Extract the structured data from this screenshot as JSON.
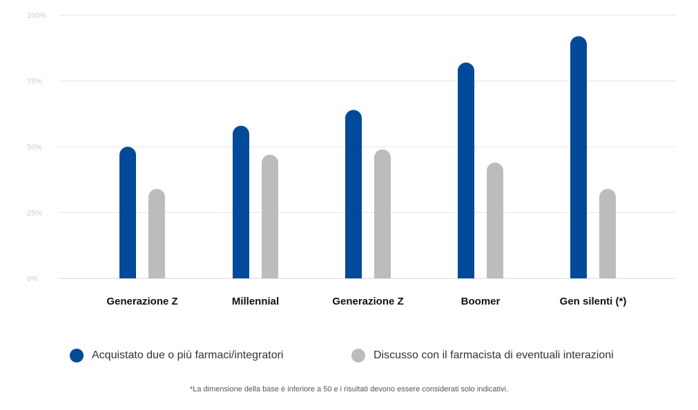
{
  "chart_data": {
    "type": "bar",
    "categories": [
      "Generazione Z",
      "Millennial",
      "Generazione Z",
      "Boomer",
      "Gen silenti (*)"
    ],
    "series": [
      {
        "name": "Acquistato due o più farmaci/integratori",
        "values": [
          50,
          58,
          64,
          82,
          92
        ],
        "color": "#004a99"
      },
      {
        "name": "Discusso con il farmacista di eventuali interazioni",
        "values": [
          34,
          47,
          49,
          44,
          34
        ],
        "color": "#bcbcbc"
      }
    ],
    "ylim": [
      0,
      100
    ],
    "yticks": [
      0,
      25,
      50,
      75,
      100
    ],
    "ytick_labels": [
      "0%",
      "25%",
      "50%",
      "75%",
      "100%"
    ],
    "grid": true,
    "legend_position": "bottom"
  },
  "footnote": "*La dimensione della base è inferiore a 50 e i risultati devono essere considerati solo indicativi."
}
